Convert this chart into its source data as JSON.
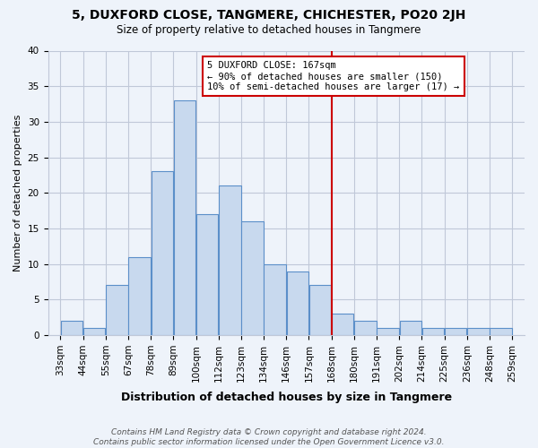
{
  "title": "5, DUXFORD CLOSE, TANGMERE, CHICHESTER, PO20 2JH",
  "subtitle": "Size of property relative to detached houses in Tangmere",
  "xlabel": "Distribution of detached houses by size in Tangmere",
  "ylabel": "Number of detached properties",
  "bin_labels": [
    "33sqm",
    "44sqm",
    "55sqm",
    "67sqm",
    "78sqm",
    "89sqm",
    "100sqm",
    "112sqm",
    "123sqm",
    "134sqm",
    "146sqm",
    "157sqm",
    "168sqm",
    "180sqm",
    "191sqm",
    "202sqm",
    "214sqm",
    "225sqm",
    "236sqm",
    "248sqm",
    "259sqm"
  ],
  "bar_heights": [
    2,
    1,
    7,
    11,
    23,
    33,
    17,
    21,
    16,
    10,
    9,
    7,
    3,
    2,
    1,
    2,
    1,
    1,
    1,
    1
  ],
  "bar_color": "#c8d9ee",
  "bar_edge_color": "#5b8fc9",
  "highlight_bin_index": 12,
  "highlight_line_color": "#cc0000",
  "annotation_line1": "5 DUXFORD CLOSE: 167sqm",
  "annotation_line2": "← 90% of detached houses are smaller (150)",
  "annotation_line3": "10% of semi-detached houses are larger (17) →",
  "annotation_box_color": "#ffffff",
  "annotation_box_edge": "#cc0000",
  "ylim": [
    0,
    40
  ],
  "yticks": [
    0,
    5,
    10,
    15,
    20,
    25,
    30,
    35,
    40
  ],
  "footer_line1": "Contains HM Land Registry data © Crown copyright and database right 2024.",
  "footer_line2": "Contains public sector information licensed under the Open Government Licence v3.0.",
  "background_color": "#eef3fa",
  "plot_bg_color": "#eef3fa",
  "grid_color": "#c0c8d8",
  "title_fontsize": 10,
  "subtitle_fontsize": 8.5,
  "ylabel_fontsize": 8,
  "xlabel_fontsize": 9,
  "tick_fontsize": 7.5,
  "footer_fontsize": 6.5
}
